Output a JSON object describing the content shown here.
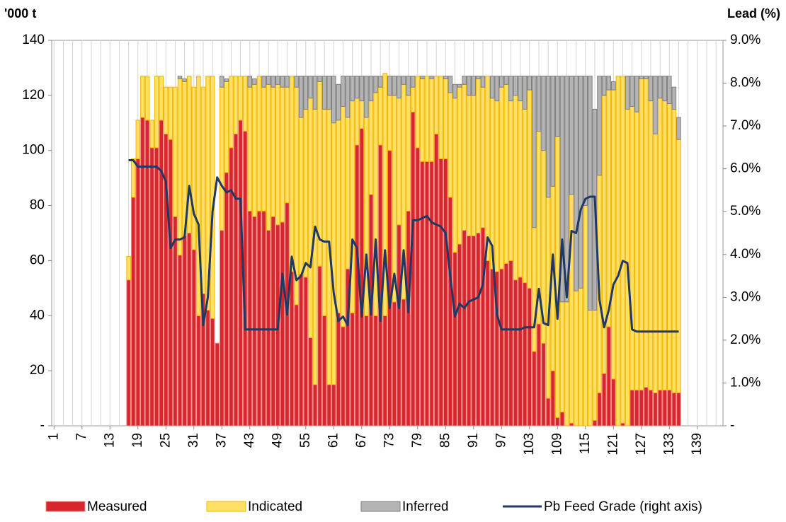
{
  "chart_data": {
    "type": "bar",
    "stacked": true,
    "y_label": "'000 t",
    "y2_label": "Lead (%)",
    "categories": [
      1,
      null,
      null,
      null,
      null,
      null,
      7,
      null,
      null,
      null,
      null,
      null,
      13,
      null,
      null,
      null,
      null,
      null,
      19,
      null,
      null,
      null,
      null,
      null,
      25,
      null,
      null,
      null,
      null,
      null,
      31,
      null,
      null,
      null,
      null,
      null,
      37,
      null,
      null,
      null,
      null,
      null,
      43,
      null,
      null,
      null,
      null,
      null,
      49,
      null,
      null,
      null,
      null,
      null,
      55,
      null,
      null,
      null,
      null,
      null,
      61,
      null,
      null,
      null,
      null,
      null,
      67,
      null,
      null,
      null,
      null,
      null,
      73,
      null,
      null,
      null,
      null,
      null,
      79,
      null,
      null,
      null,
      null,
      null,
      85,
      null,
      null,
      null,
      null,
      null,
      91,
      null,
      null,
      null,
      null,
      null,
      97,
      null,
      null,
      null,
      null,
      null,
      103,
      null,
      null,
      null,
      null,
      null,
      109,
      null,
      null,
      null,
      null,
      null,
      115,
      null,
      null,
      null,
      null,
      null,
      121,
      null,
      null,
      null,
      null,
      null,
      127,
      null,
      null,
      null,
      null,
      null,
      133,
      null,
      null,
      null,
      null,
      null,
      139,
      null,
      null,
      null,
      null,
      null
    ],
    "ylim": [
      0,
      140
    ],
    "yticks": [
      {
        "value": 0,
        "label": "-"
      },
      20,
      40,
      60,
      80,
      100,
      120,
      140
    ],
    "y2lim": [
      0,
      9
    ],
    "y2ticks": [
      {
        "value": 0,
        "label": "-"
      },
      {
        "value": 1,
        "label": "1.0%"
      },
      {
        "value": 2,
        "label": "2.0%"
      },
      {
        "value": 3,
        "label": "3.0%"
      },
      {
        "value": 4,
        "label": "4.0%"
      },
      {
        "value": 5,
        "label": "5.0%"
      },
      {
        "value": 6,
        "label": "6.0%"
      },
      {
        "value": 7,
        "label": "7.0%"
      },
      {
        "value": 8,
        "label": "8.0%"
      },
      {
        "value": 9,
        "label": "9.0%"
      }
    ],
    "grid": true,
    "legend": "bottom",
    "series": [
      {
        "name": "Measured",
        "type": "bar",
        "color": "#d7262c",
        "edge": "#f08a8a",
        "values": [
          null,
          null,
          null,
          null,
          null,
          null,
          null,
          null,
          null,
          null,
          null,
          null,
          null,
          null,
          null,
          null,
          53,
          83,
          97,
          112,
          111,
          101,
          101,
          111,
          106,
          104,
          76,
          62,
          69,
          70,
          64,
          40,
          48,
          42,
          39,
          30,
          71,
          92,
          101,
          106,
          111,
          107,
          78,
          76,
          78,
          78,
          71,
          76,
          73,
          74,
          81,
          56,
          44,
          55,
          54,
          32,
          15,
          58,
          40,
          15,
          15,
          41,
          36,
          57,
          41,
          102,
          108,
          40,
          84,
          40,
          102,
          40,
          100,
          45,
          73,
          46,
          78,
          114,
          101,
          96,
          96,
          96,
          106,
          97,
          97,
          83,
          63,
          66,
          71,
          69,
          69,
          70,
          72,
          60,
          57,
          56,
          57,
          59,
          60,
          53,
          54,
          52,
          50,
          27,
          37,
          30,
          10,
          20,
          3,
          5,
          0,
          1,
          0,
          0,
          0,
          0,
          2,
          12,
          19,
          36,
          17,
          0,
          1,
          0,
          13,
          13,
          13,
          14,
          13,
          12,
          13,
          13,
          13,
          12,
          12,
          null,
          null,
          null,
          null,
          null,
          null,
          null,
          null,
          null
        ]
      },
      {
        "name": "Indicated",
        "type": "bar",
        "color": "#ffe066",
        "edge": "#f2b700",
        "values": [
          null,
          null,
          null,
          null,
          null,
          null,
          null,
          null,
          null,
          null,
          null,
          null,
          null,
          null,
          null,
          null,
          8.5,
          14,
          14,
          15,
          16,
          10,
          26,
          16,
          17,
          19,
          47,
          64,
          56,
          57,
          59,
          87,
          75,
          85,
          88,
          0,
          52,
          33,
          26,
          21,
          16,
          20,
          45,
          48,
          49,
          45,
          53,
          47,
          51,
          49,
          42,
          71,
          79,
          57,
          61,
          87,
          100,
          67,
          75,
          100,
          95,
          70,
          80,
          55,
          77,
          17,
          10,
          72,
          34,
          81,
          21,
          88,
          20,
          75,
          46,
          78,
          42,
          9,
          26,
          30,
          31,
          30,
          21,
          30,
          29,
          38,
          56,
          57,
          53,
          51,
          51,
          56,
          51,
          67,
          62,
          62,
          66,
          65,
          58,
          67,
          64,
          63,
          72,
          45,
          70,
          70,
          73,
          67,
          102,
          40,
          45,
          83,
          49,
          50,
          80,
          42,
          40,
          79,
          101,
          86,
          105,
          127,
          126,
          115,
          103,
          101,
          113,
          112,
          105,
          94,
          106,
          105,
          104,
          103,
          92,
          null,
          null,
          null,
          null,
          null,
          null,
          null,
          null,
          null
        ]
      },
      {
        "name": "Inferred",
        "type": "bar",
        "color": "#b4b4b4",
        "edge": "#7f7f7f",
        "values": [
          null,
          null,
          null,
          null,
          null,
          null,
          null,
          null,
          null,
          null,
          null,
          null,
          null,
          null,
          null,
          null,
          0,
          0,
          0,
          0,
          0,
          0,
          0,
          0,
          0,
          0,
          0,
          1,
          1,
          0,
          0,
          0,
          0,
          0,
          0,
          0,
          4,
          1,
          0,
          0,
          0,
          0,
          4,
          2,
          0,
          4,
          3,
          4,
          3,
          4,
          4,
          0,
          4,
          15,
          12,
          8,
          12,
          2,
          12,
          12,
          17,
          13,
          11,
          15,
          9,
          8,
          9,
          15,
          9,
          6,
          4,
          0,
          7,
          7,
          8,
          3,
          7,
          4,
          0,
          1,
          0,
          1,
          0,
          0,
          1,
          6,
          5,
          1,
          3,
          7,
          7,
          1,
          4,
          0,
          8,
          9,
          4,
          3,
          9,
          7,
          9,
          12,
          5,
          55,
          20,
          27,
          44,
          40,
          22,
          82,
          82,
          43,
          78,
          77,
          47,
          85,
          73,
          36,
          7,
          5,
          3,
          0,
          0,
          12,
          11,
          13,
          1,
          1,
          9,
          21,
          8,
          9,
          10,
          8,
          8,
          null,
          null,
          null,
          null,
          null,
          null,
          null,
          null,
          null
        ]
      },
      {
        "name": "Pb Feed Grade (right axis)",
        "type": "line",
        "axis": "y2",
        "color": "#1f3864",
        "values": [
          null,
          null,
          null,
          null,
          null,
          null,
          null,
          null,
          null,
          null,
          null,
          null,
          null,
          null,
          null,
          null,
          6.2,
          6.2,
          6.05,
          6.05,
          6.05,
          6.05,
          6.05,
          5.95,
          5.7,
          4.15,
          4.35,
          4.35,
          4.4,
          5.6,
          4.95,
          4.7,
          2.35,
          3.0,
          5.0,
          5.8,
          5.6,
          5.45,
          5.5,
          5.3,
          5.3,
          2.25,
          2.25,
          2.25,
          2.25,
          2.25,
          2.25,
          2.25,
          2.25,
          3.55,
          2.6,
          3.95,
          3.4,
          3.5,
          3.8,
          3.7,
          4.65,
          4.35,
          4.3,
          4.3,
          3.1,
          2.45,
          2.55,
          2.35,
          4.35,
          4.15,
          2.55,
          4.0,
          2.6,
          4.35,
          2.45,
          4.1,
          2.75,
          3.55,
          2.75,
          4.1,
          2.65,
          4.8,
          4.8,
          4.85,
          4.9,
          4.75,
          4.7,
          4.65,
          4.5,
          3.5,
          2.55,
          2.85,
          2.75,
          2.9,
          2.95,
          3.0,
          3.3,
          4.4,
          4.2,
          2.6,
          2.25,
          2.25,
          2.25,
          2.25,
          2.25,
          2.3,
          2.3,
          2.3,
          3.2,
          2.4,
          2.35,
          4.0,
          2.5,
          4.35,
          3.0,
          4.55,
          4.5,
          5.05,
          5.3,
          5.35,
          5.35,
          2.95,
          2.3,
          2.7,
          3.3,
          3.5,
          3.85,
          3.8,
          2.25,
          2.2,
          2.2,
          2.2,
          2.2,
          2.2,
          2.2,
          2.2,
          2.2,
          2.2,
          2.2,
          null,
          null,
          null,
          null,
          null,
          null,
          null,
          null,
          null
        ]
      }
    ]
  }
}
